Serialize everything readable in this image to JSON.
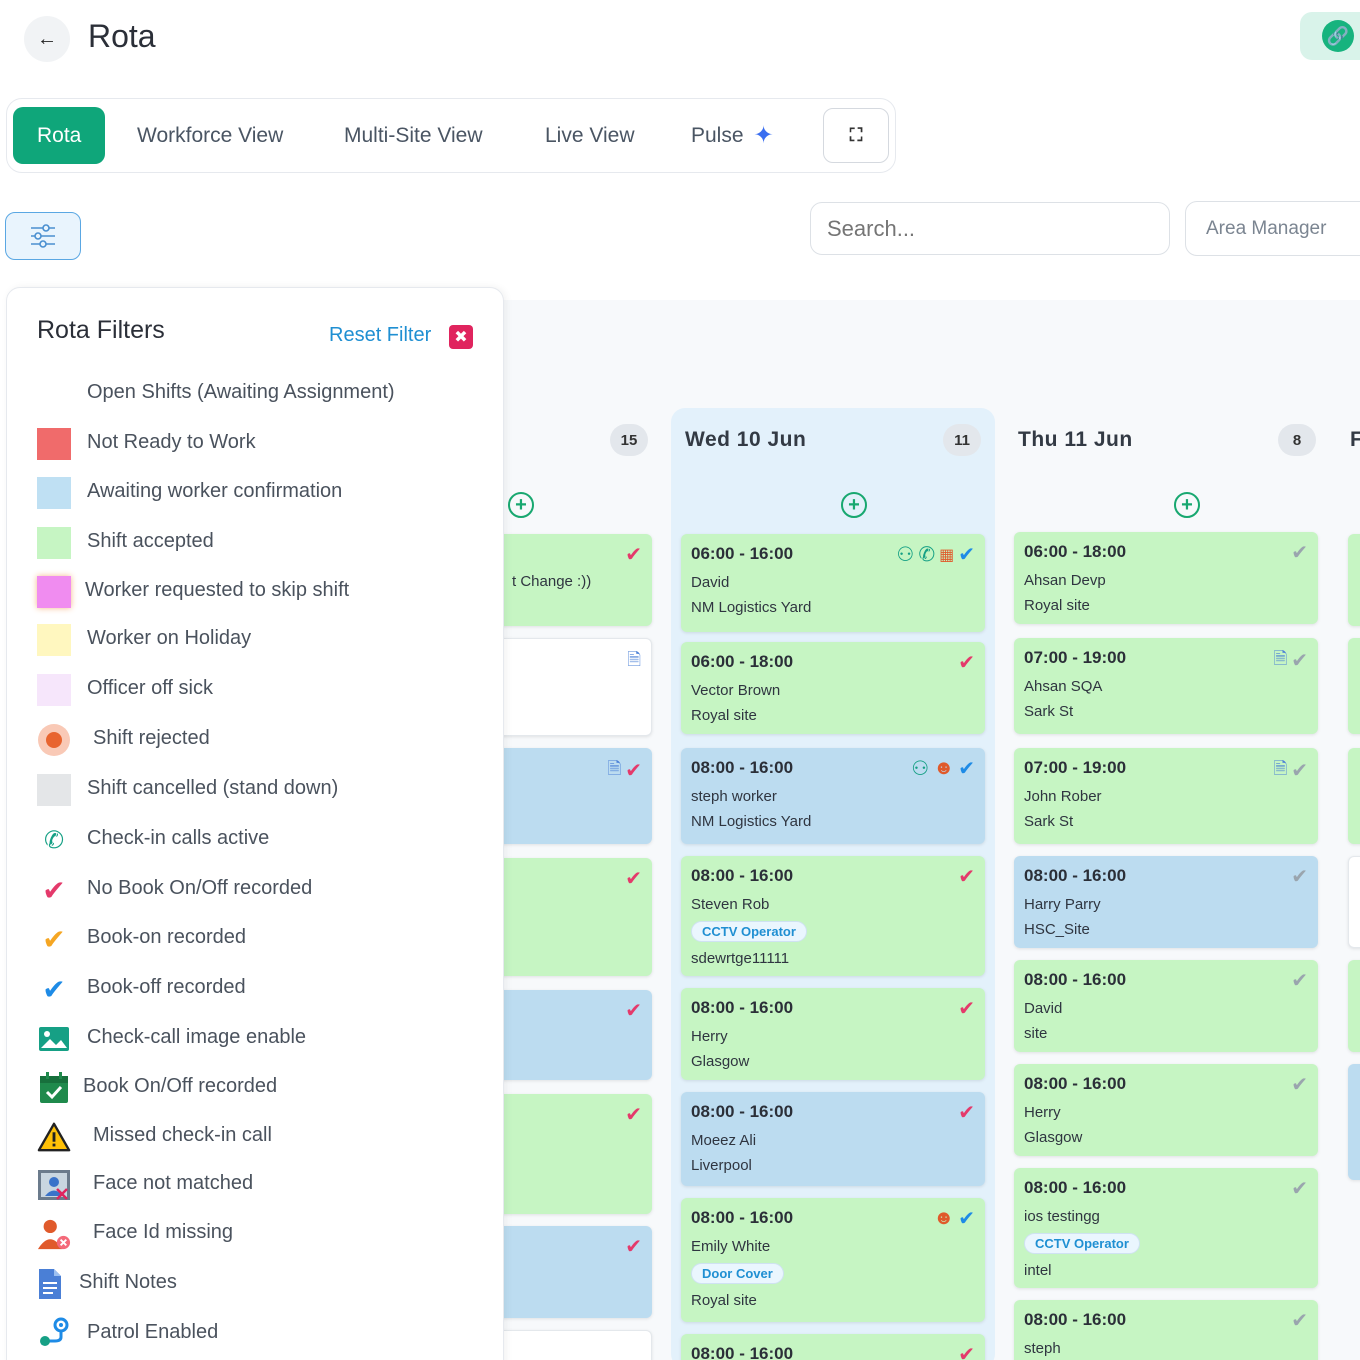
{
  "header": {
    "title": "Rota"
  },
  "tabs": [
    {
      "label": "Rota",
      "active": true
    },
    {
      "label": "Workforce View"
    },
    {
      "label": "Multi-Site View"
    },
    {
      "label": "Live View"
    },
    {
      "label": "Pulse"
    }
  ],
  "search": {
    "placeholder": "Search..."
  },
  "area": {
    "value": "Area Manager"
  },
  "filters": {
    "title": "Rota Filters",
    "reset_label": "Reset Filter",
    "items": [
      {
        "label": "Open Shifts (Awaiting Assignment)",
        "color": "#ffffff"
      },
      {
        "label": "Not Ready to Work",
        "color": "#f06b6b"
      },
      {
        "label": "Awaiting worker confirmation",
        "color": "#bfe0f3"
      },
      {
        "label": "Shift accepted",
        "color": "#c6f5c3"
      },
      {
        "label": "Worker requested to skip shift",
        "color": "#f08cf0"
      },
      {
        "label": "Worker on Holiday",
        "color": "#fff7bf"
      },
      {
        "label": "Officer off sick",
        "color": "#f6e6fb"
      },
      {
        "label": "Shift rejected",
        "color": "#f07a4a"
      },
      {
        "label": "Shift cancelled (stand down)",
        "color": "#e4e6e8"
      },
      {
        "label": "Check-in calls active",
        "icon": "phone-check-icon"
      },
      {
        "label": "No Book On/Off recorded",
        "icon": "red-check-icon"
      },
      {
        "label": "Book-on recorded",
        "icon": "orange-check-icon"
      },
      {
        "label": "Book-off recorded",
        "icon": "blue-double-check-icon"
      },
      {
        "label": "Check-call image enable",
        "icon": "image-icon"
      },
      {
        "label": "Book On/Off recorded",
        "icon": "calendar-check-icon"
      },
      {
        "label": "Missed check-in call",
        "icon": "warning-icon"
      },
      {
        "label": "Face not matched",
        "icon": "face-mismatch-icon"
      },
      {
        "label": "Face Id missing",
        "icon": "face-missing-icon"
      },
      {
        "label": "Shift Notes",
        "icon": "notes-icon"
      },
      {
        "label": "Patrol Enabled",
        "icon": "patrol-icon"
      }
    ]
  },
  "days": [
    {
      "name": "",
      "count": "15",
      "shifts": [
        {
          "color": "green",
          "time": "",
          "lines": [
            "t Change :))"
          ],
          "icons": [
            "red-check"
          ]
        },
        {
          "color": "white",
          "time": "",
          "lines": [],
          "icons": [
            "doc"
          ]
        },
        {
          "color": "blue",
          "time": "",
          "lines": [],
          "icons": [
            "doc",
            "red-check"
          ]
        },
        {
          "color": "green",
          "time": "",
          "lines": [],
          "icons": [
            "red-check"
          ]
        },
        {
          "color": "blue",
          "time": "",
          "lines": [],
          "icons": [
            "red-check"
          ]
        },
        {
          "color": "green",
          "time": "",
          "lines": [],
          "icons": [
            "red-check"
          ]
        },
        {
          "color": "blue",
          "time": "",
          "lines": [],
          "icons": [
            "red-check"
          ]
        }
      ]
    },
    {
      "name": "Wed 10 Jun",
      "count": "11",
      "shifts": [
        {
          "color": "green",
          "time": "06:00 - 16:00",
          "lines": [
            "David",
            "NM Logistics Yard"
          ],
          "icons": [
            "patrol",
            "phone",
            "face",
            "blue-check"
          ]
        },
        {
          "color": "green",
          "time": "06:00 - 18:00",
          "lines": [
            "Vector Brown",
            "Royal site"
          ],
          "icons": [
            "red-check"
          ]
        },
        {
          "color": "blue",
          "time": "08:00 - 16:00",
          "lines": [
            "steph worker",
            "NM Logistics Yard"
          ],
          "icons": [
            "patrol",
            "face-missing",
            "blue-check"
          ]
        },
        {
          "color": "green",
          "time": "08:00 - 16:00",
          "lines": [
            "Steven Rob"
          ],
          "role": "CCTV Operator",
          "lines2": [
            "sdewrtge11111"
          ],
          "icons": [
            "red-check"
          ]
        },
        {
          "color": "green",
          "time": "08:00 - 16:00",
          "lines": [
            "Herry",
            "Glasgow"
          ],
          "icons": [
            "red-check"
          ]
        },
        {
          "color": "blue",
          "time": "08:00 - 16:00",
          "lines": [
            "Moeez Ali",
            "Liverpool"
          ],
          "icons": [
            "red-check"
          ]
        },
        {
          "color": "green",
          "time": "08:00 - 16:00",
          "lines": [
            "Emily White"
          ],
          "role": "Door Cover",
          "lines2": [
            "Royal site"
          ],
          "icons": [
            "face-missing",
            "blue-check"
          ]
        },
        {
          "color": "green",
          "time": "08:00 - 16:00",
          "lines": [],
          "icons": [
            "red-check"
          ]
        }
      ]
    },
    {
      "name": "Thu 11 Jun",
      "count": "8",
      "shifts": [
        {
          "color": "green",
          "time": "06:00 - 18:00",
          "lines": [
            "Ahsan Devp",
            "Royal site"
          ],
          "icons": [
            "grey-check"
          ]
        },
        {
          "color": "green",
          "time": "07:00 - 19:00",
          "lines": [
            "Ahsan SQA",
            "Sark St"
          ],
          "icons": [
            "doc",
            "grey-check"
          ]
        },
        {
          "color": "green",
          "time": "07:00 - 19:00",
          "lines": [
            "John Rober",
            "Sark St"
          ],
          "icons": [
            "doc",
            "grey-check"
          ]
        },
        {
          "color": "blue",
          "time": "08:00 - 16:00",
          "lines": [
            "Harry Parry",
            "HSC_Site"
          ],
          "icons": [
            "grey-check"
          ]
        },
        {
          "color": "green",
          "time": "08:00 - 16:00",
          "lines": [
            "David",
            "site"
          ],
          "icons": [
            "grey-check"
          ]
        },
        {
          "color": "green",
          "time": "08:00 - 16:00",
          "lines": [
            "Herry",
            "Glasgow"
          ],
          "icons": [
            "grey-check"
          ]
        },
        {
          "color": "green",
          "time": "08:00 - 16:00",
          "lines": [
            "ios testingg"
          ],
          "role": "CCTV Operator",
          "lines2": [
            "intel"
          ],
          "icons": [
            "grey-check"
          ]
        },
        {
          "color": "green",
          "time": "08:00 - 16:00",
          "lines": [
            "steph"
          ],
          "icons": [
            "grey-check"
          ]
        }
      ]
    },
    {
      "name": "F",
      "count": "",
      "shifts": []
    }
  ]
}
